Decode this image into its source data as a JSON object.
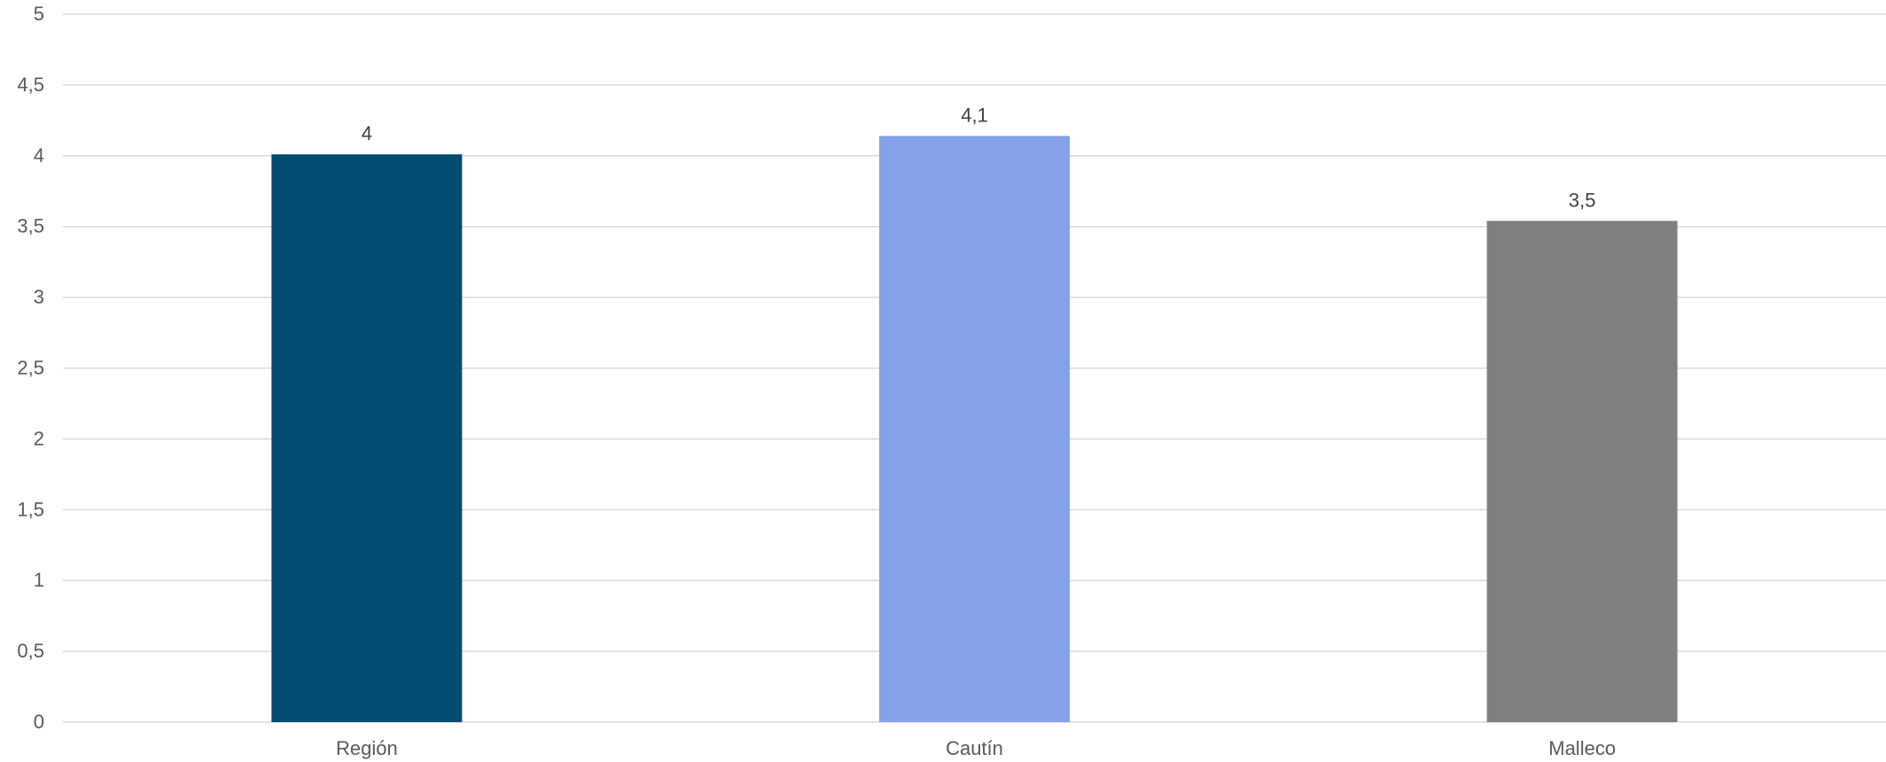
{
  "chart_data": {
    "type": "bar",
    "title": "",
    "xlabel": "",
    "ylabel": "",
    "categories": [
      "Región",
      "Cautín",
      "Malleco"
    ],
    "values": [
      4.01,
      4.14,
      3.54
    ],
    "data_labels": [
      "4",
      "4,1",
      "3,5"
    ],
    "colors": [
      "#004c70",
      "#85a2e8",
      "#7f7f7f"
    ],
    "ylim": [
      0,
      5
    ],
    "yticks": [
      0,
      0.5,
      1,
      1.5,
      2,
      2.5,
      3,
      3.5,
      4,
      4.5,
      5
    ],
    "ytick_labels": [
      "0",
      "0,5",
      "1",
      "1,5",
      "2",
      "2,5",
      "3",
      "3,5",
      "4",
      "4,5",
      "5"
    ],
    "grid": true,
    "legend": "none"
  }
}
